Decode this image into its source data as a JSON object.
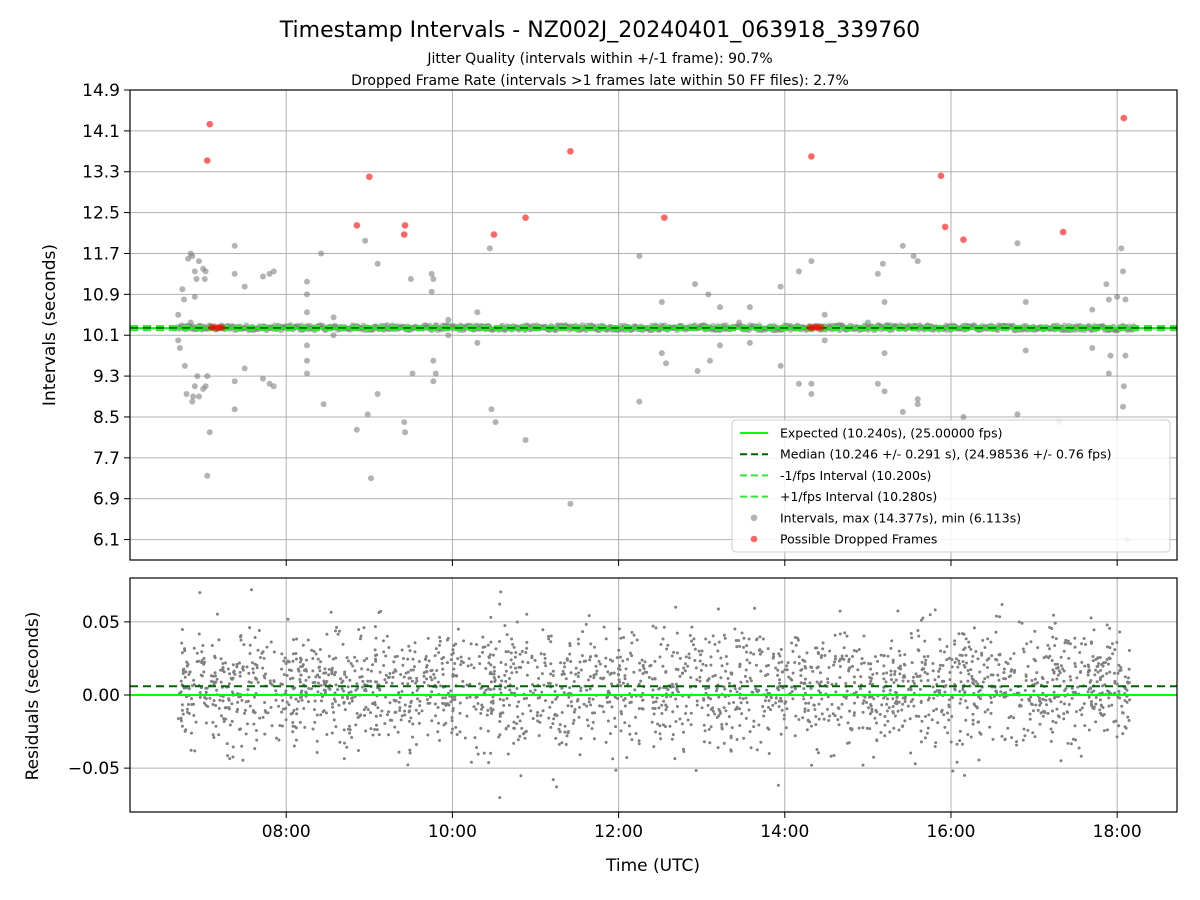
{
  "figure": {
    "title": "Timestamp Intervals - NZ002J_20240401_063918_339760",
    "subtitle_1": "Jitter Quality (intervals within +/-1 frame): 90.7%",
    "subtitle_2": "Dropped Frame Rate (intervals >1 frames late within 50 FF files): 2.7%"
  },
  "colors": {
    "expected": "#00ff00",
    "median": "#006400",
    "interval_band": "#32e632",
    "intervals": "#808080",
    "dropped": "#ff0000",
    "grid": "#b0b0b0"
  },
  "chart_data": [
    {
      "type": "scatter",
      "ylabel": "Intervals (seconds)",
      "xlim_hours": [
        6.12,
        18.72
      ],
      "ylim": [
        5.7,
        14.9
      ],
      "yticks": [
        "6.1",
        "6.9",
        "7.7",
        "8.5",
        "9.3",
        "10.1",
        "10.9",
        "11.7",
        "12.5",
        "13.3",
        "14.1",
        "14.9"
      ],
      "ytick_values": [
        6.1,
        6.9,
        7.7,
        8.5,
        9.3,
        10.1,
        10.9,
        11.7,
        12.5,
        13.3,
        14.1,
        14.9
      ],
      "grid": true,
      "legend_position": "lower right",
      "legend": [
        "Expected (10.240s), (25.00000 fps)",
        "Median (10.246 +/- 0.291 s), (24.98536 +/- 0.76 fps)",
        "-1/fps Interval (10.200s)",
        "+1/fps Interval (10.280s)",
        "Intervals, max (14.377s), min (6.113s)",
        "Possible Dropped Frames"
      ],
      "lines": {
        "expected": 10.24,
        "median": 10.246,
        "minus_interval": 10.2,
        "plus_interval": 10.28
      },
      "dense_band": {
        "y": 10.246,
        "x_start": 6.7,
        "x_end": 18.2
      },
      "intervals": [
        [
          6.7,
          10.5
        ],
        [
          6.7,
          10.0
        ],
        [
          6.72,
          9.85
        ],
        [
          6.75,
          11.0
        ],
        [
          6.77,
          10.8
        ],
        [
          6.78,
          9.5
        ],
        [
          6.8,
          8.95
        ],
        [
          6.82,
          11.6
        ],
        [
          6.85,
          11.7
        ],
        [
          6.85,
          10.35
        ],
        [
          6.87,
          11.65
        ],
        [
          6.87,
          8.8
        ],
        [
          6.88,
          8.9
        ],
        [
          6.9,
          11.35
        ],
        [
          6.9,
          10.85
        ],
        [
          6.9,
          9.1
        ],
        [
          6.92,
          11.2
        ],
        [
          6.93,
          9.3
        ],
        [
          6.95,
          11.55
        ],
        [
          6.95,
          8.9
        ],
        [
          7.0,
          11.4
        ],
        [
          7.0,
          9.05
        ],
        [
          7.02,
          11.2
        ],
        [
          7.03,
          11.35
        ],
        [
          7.03,
          9.1
        ],
        [
          7.05,
          9.3
        ],
        [
          7.05,
          7.35
        ],
        [
          7.08,
          8.2
        ],
        [
          7.38,
          11.85
        ],
        [
          7.38,
          11.3
        ],
        [
          7.38,
          9.2
        ],
        [
          7.38,
          8.65
        ],
        [
          7.5,
          11.05
        ],
        [
          7.5,
          9.45
        ],
        [
          7.72,
          11.25
        ],
        [
          7.72,
          9.25
        ],
        [
          7.8,
          11.3
        ],
        [
          7.8,
          9.15
        ],
        [
          7.85,
          11.35
        ],
        [
          7.85,
          9.1
        ],
        [
          8.25,
          11.15
        ],
        [
          8.25,
          10.9
        ],
        [
          8.25,
          10.55
        ],
        [
          8.25,
          9.9
        ],
        [
          8.25,
          9.6
        ],
        [
          8.25,
          9.35
        ],
        [
          8.42,
          11.7
        ],
        [
          8.45,
          8.75
        ],
        [
          8.57,
          10.45
        ],
        [
          8.57,
          10.1
        ],
        [
          8.85,
          8.25
        ],
        [
          8.95,
          11.95
        ],
        [
          8.98,
          8.55
        ],
        [
          9.02,
          7.3
        ],
        [
          9.1,
          11.5
        ],
        [
          9.1,
          8.95
        ],
        [
          9.42,
          8.4
        ],
        [
          9.43,
          8.2
        ],
        [
          9.5,
          11.2
        ],
        [
          9.52,
          9.35
        ],
        [
          9.75,
          11.3
        ],
        [
          9.75,
          10.95
        ],
        [
          9.77,
          11.2
        ],
        [
          9.77,
          9.6
        ],
        [
          9.77,
          9.2
        ],
        [
          9.8,
          9.35
        ],
        [
          9.95,
          10.4
        ],
        [
          9.95,
          10.1
        ],
        [
          10.3,
          10.55
        ],
        [
          10.3,
          9.95
        ],
        [
          10.45,
          11.8
        ],
        [
          10.47,
          8.65
        ],
        [
          10.52,
          8.4
        ],
        [
          10.88,
          8.05
        ],
        [
          11.42,
          6.8
        ],
        [
          12.25,
          11.65
        ],
        [
          12.25,
          8.8
        ],
        [
          12.52,
          10.75
        ],
        [
          12.52,
          9.75
        ],
        [
          12.57,
          9.55
        ],
        [
          12.92,
          11.1
        ],
        [
          12.95,
          9.4
        ],
        [
          13.08,
          10.9
        ],
        [
          13.1,
          9.6
        ],
        [
          13.22,
          10.65
        ],
        [
          13.22,
          9.9
        ],
        [
          13.45,
          10.35
        ],
        [
          13.58,
          10.65
        ],
        [
          13.58,
          9.95
        ],
        [
          13.95,
          11.05
        ],
        [
          13.95,
          9.5
        ],
        [
          14.17,
          11.35
        ],
        [
          14.17,
          9.15
        ],
        [
          14.32,
          11.55
        ],
        [
          14.32,
          9.15
        ],
        [
          14.32,
          8.95
        ],
        [
          14.48,
          10.5
        ],
        [
          14.48,
          10.0
        ],
        [
          14.65,
          10.3
        ],
        [
          14.9,
          10.2
        ],
        [
          15.0,
          10.35
        ],
        [
          15.12,
          11.3
        ],
        [
          15.12,
          9.15
        ],
        [
          15.18,
          11.5
        ],
        [
          15.2,
          10.75
        ],
        [
          15.2,
          9.75
        ],
        [
          15.2,
          9.0
        ],
        [
          15.42,
          11.85
        ],
        [
          15.42,
          8.6
        ],
        [
          15.55,
          11.65
        ],
        [
          15.6,
          11.55
        ],
        [
          15.6,
          8.85
        ],
        [
          15.6,
          8.75
        ],
        [
          16.15,
          8.5
        ],
        [
          16.8,
          11.9
        ],
        [
          16.8,
          8.55
        ],
        [
          16.9,
          10.75
        ],
        [
          16.9,
          9.8
        ],
        [
          17.3,
          8.4
        ],
        [
          17.7,
          10.6
        ],
        [
          17.7,
          9.85
        ],
        [
          17.87,
          11.1
        ],
        [
          17.9,
          10.8
        ],
        [
          17.9,
          9.35
        ],
        [
          17.92,
          9.7
        ],
        [
          18.0,
          10.85
        ],
        [
          18.05,
          11.8
        ],
        [
          18.07,
          11.35
        ],
        [
          18.07,
          8.7
        ],
        [
          18.08,
          9.1
        ],
        [
          18.1,
          10.8
        ],
        [
          18.1,
          9.7
        ],
        [
          18.12,
          6.1
        ]
      ],
      "dropped_frames": [
        [
          7.08,
          14.23
        ],
        [
          7.05,
          13.52
        ],
        [
          8.85,
          12.25
        ],
        [
          9.0,
          13.2
        ],
        [
          9.43,
          12.25
        ],
        [
          9.42,
          12.07
        ],
        [
          10.5,
          12.07
        ],
        [
          10.88,
          12.4
        ],
        [
          11.42,
          13.7
        ],
        [
          12.55,
          12.4
        ],
        [
          14.32,
          13.6
        ],
        [
          15.88,
          13.22
        ],
        [
          15.93,
          12.22
        ],
        [
          16.15,
          11.97
        ],
        [
          17.35,
          12.12
        ],
        [
          18.08,
          14.35
        ],
        [
          7.1,
          10.25
        ],
        [
          7.13,
          10.25
        ],
        [
          7.17,
          10.25
        ],
        [
          7.2,
          10.25
        ],
        [
          7.23,
          10.25
        ],
        [
          14.3,
          10.25
        ],
        [
          14.33,
          10.25
        ],
        [
          14.37,
          10.25
        ],
        [
          14.4,
          10.25
        ],
        [
          14.44,
          10.25
        ]
      ]
    },
    {
      "type": "scatter",
      "xlabel": "Time (UTC)",
      "ylabel": "Residuals (seconds)",
      "xlim_hours": [
        6.12,
        18.72
      ],
      "ylim": [
        -0.08,
        0.08
      ],
      "xticks": [
        "08:00",
        "10:00",
        "12:00",
        "14:00",
        "16:00",
        "18:00"
      ],
      "xtick_values": [
        8,
        10,
        12,
        14,
        16,
        18
      ],
      "yticks": [
        "−0.05",
        "0.00",
        "0.05"
      ],
      "ytick_values": [
        -0.05,
        0.0,
        0.05
      ],
      "grid": true,
      "lines": {
        "zero": 0.0,
        "median_offset": 0.006
      },
      "residual_points": {
        "x_start": 6.7,
        "x_end": 18.15,
        "count": 2400,
        "center": 0.005,
        "std": 0.02
      }
    }
  ]
}
